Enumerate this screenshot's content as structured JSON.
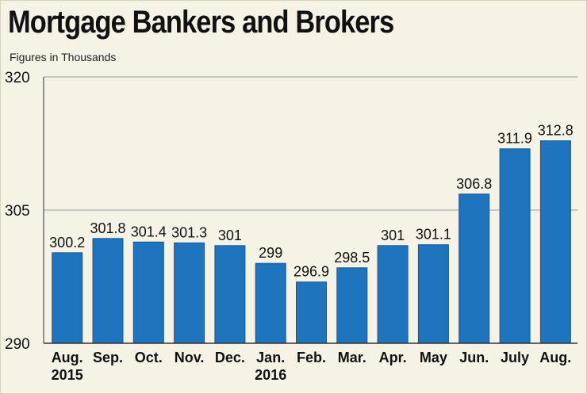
{
  "title": "Mortgage Bankers and Brokers",
  "subtitle": "Figures in Thousands",
  "colors": {
    "bar": "#1f74be",
    "bar_edge": "#15589a",
    "background": "#f6f2e6",
    "grid": "#9a9a9a",
    "text": "#111111"
  },
  "chart_data": {
    "type": "bar",
    "title": "Mortgage Bankers and Brokers",
    "subtitle": "Figures in Thousands",
    "xlabel": "",
    "ylabel": "",
    "ylim": [
      290,
      320
    ],
    "yticks": [
      290,
      305,
      320
    ],
    "grid": true,
    "categories": [
      "Aug.\n2015",
      "Sep.",
      "Oct.",
      "Nov.",
      "Dec.",
      "Jan.\n2016",
      "Feb.",
      "Mar.",
      "Apr.",
      "May",
      "Jun.",
      "July",
      "Aug."
    ],
    "values": [
      300.2,
      301.8,
      301.4,
      301.3,
      301,
      299,
      296.9,
      298.5,
      301,
      301.1,
      306.8,
      311.9,
      312.8
    ],
    "data_labels": [
      "300.2",
      "301.8",
      "301.4",
      "301.3",
      "301",
      "299",
      "296.9",
      "298.5",
      "301",
      "301.1",
      "306.8",
      "311.9",
      "312.8"
    ]
  }
}
